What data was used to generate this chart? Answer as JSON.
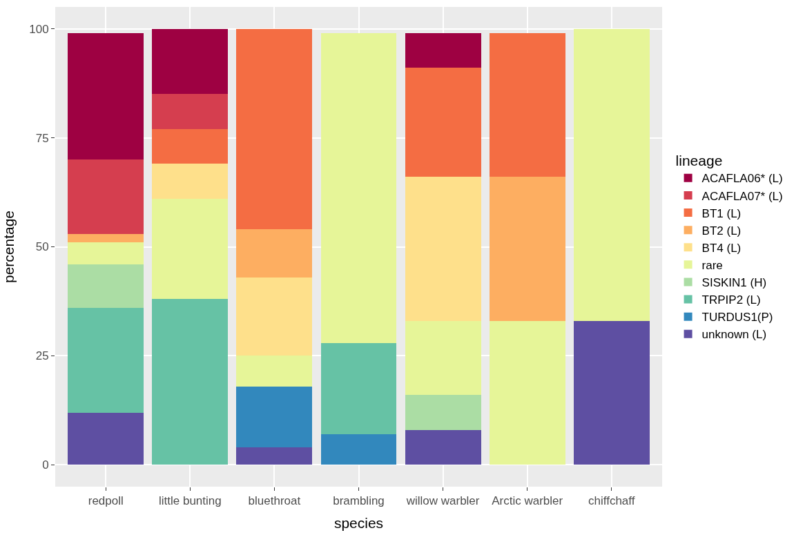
{
  "chart_data": {
    "type": "bar",
    "stacked": true,
    "xlabel": "species",
    "ylabel": "percentage",
    "legend_title": "lineage",
    "categories": [
      "redpoll",
      "little bunting",
      "bluethroat",
      "brambling",
      "willow warbler",
      "Arctic warbler",
      "chiffchaff"
    ],
    "series": [
      {
        "name": "unknown (L)",
        "color": "#5e4fa2",
        "values": [
          12,
          null,
          4,
          null,
          8,
          null,
          33
        ]
      },
      {
        "name": "TURDUS1(P)",
        "color": "#3288bd",
        "values": [
          null,
          null,
          14,
          7,
          null,
          null,
          null
        ]
      },
      {
        "name": "TRPIP2 (L)",
        "color": "#66c2a5",
        "values": [
          24,
          38,
          null,
          21,
          null,
          null,
          null
        ]
      },
      {
        "name": "SISKIN1 (H)",
        "color": "#abdda4",
        "values": [
          10,
          null,
          null,
          null,
          8,
          null,
          null
        ]
      },
      {
        "name": "rare",
        "color": "#e6f598",
        "values": [
          5,
          23,
          7,
          71,
          17,
          33,
          67
        ]
      },
      {
        "name": "BT4 (L)",
        "color": "#fee08b",
        "values": [
          null,
          8,
          18,
          null,
          33,
          null,
          null
        ]
      },
      {
        "name": "BT2 (L)",
        "color": "#fdae61",
        "values": [
          2,
          null,
          11,
          null,
          null,
          33,
          null
        ]
      },
      {
        "name": "BT1 (L)",
        "color": "#f46d43",
        "values": [
          null,
          8,
          46,
          null,
          25,
          33,
          null
        ]
      },
      {
        "name": "ACAFLA07* (L)",
        "color": "#d53e4f",
        "values": [
          17,
          8,
          null,
          null,
          null,
          null,
          null
        ]
      },
      {
        "name": "ACAFLA06* (L)",
        "color": "#9e0142",
        "values": [
          29,
          15,
          null,
          null,
          8,
          null,
          null
        ]
      }
    ],
    "ylim": [
      -5,
      105
    ],
    "yticks": [
      0,
      25,
      50,
      75,
      100
    ],
    "grid": true,
    "legend": "right"
  }
}
